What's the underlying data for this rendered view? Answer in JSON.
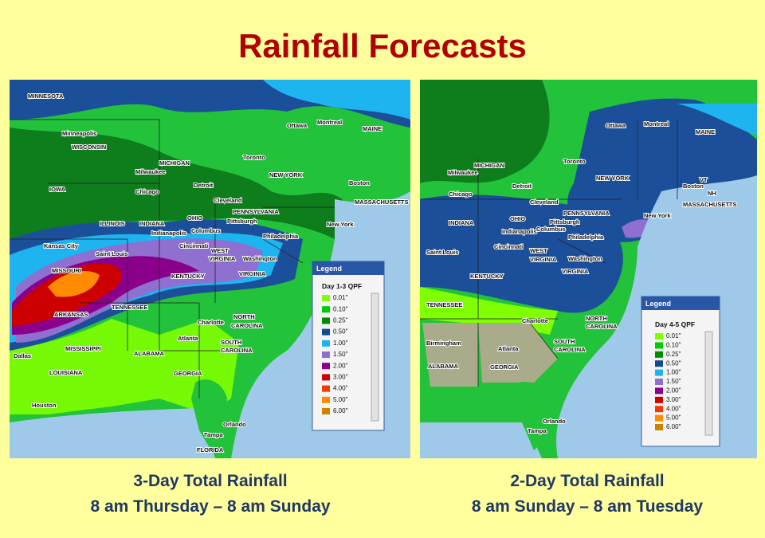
{
  "title": "Rainfall Forecasts",
  "panels": [
    {
      "caption": [
        "3-Day Total Rainfall",
        "8 am Thursday – 8 am Sunday"
      ],
      "legend": {
        "header": "Legend",
        "title": "Day 1-3 QPF",
        "items": [
          {
            "label": "0.01\"",
            "color": "#7fff00"
          },
          {
            "label": "0.10\"",
            "color": "#00cd00"
          },
          {
            "label": "0.25\"",
            "color": "#008b00"
          },
          {
            "label": "0.50\"",
            "color": "#104e8b"
          },
          {
            "label": "1.00\"",
            "color": "#1eb4f0"
          },
          {
            "label": "1.50\"",
            "color": "#8f6fd0"
          },
          {
            "label": "2.00\"",
            "color": "#8b008b"
          },
          {
            "label": "3.00\"",
            "color": "#cd0000"
          },
          {
            "label": "4.00\"",
            "color": "#f03c00"
          },
          {
            "label": "5.00\"",
            "color": "#ff8c00"
          },
          {
            "label": "6.00\"",
            "color": "#cd8500"
          }
        ]
      },
      "places": [
        "MINNESOTA",
        "Minneapolis",
        "WISCONSIN",
        "MICHIGAN",
        "Milwaukee",
        "Chicago",
        "Detroit",
        "Toronto",
        "Ottawa",
        "Montreal",
        "MAINE",
        "NEW YORK",
        "Boston",
        "MASSACHUSETTS",
        "IOWA",
        "ILLINOIS",
        "INDIANA",
        "OHIO",
        "Cleveland",
        "PENNSYLVANIA",
        "Pittsburgh",
        "Indianapolis",
        "Columbus",
        "Cincinnati",
        "New York",
        "Philadelphia",
        "Kansas City",
        "Saint Louis",
        "MISSOURI",
        "WEST",
        "VIRGINIA",
        "Washington",
        "KENTUCKY",
        "VIRGINIA",
        "TENNESSEE",
        "ARKANSAS",
        "Charlotte",
        "NORTH",
        "CAROLINA",
        "MISSISSIPPI",
        "ALABAMA",
        "Atlanta",
        "SOUTH",
        "CAROLINA",
        "GEORGIA",
        "LOUISIANA",
        "Dallas",
        "Houston",
        "Tampa",
        "Orlando",
        "FLORIDA"
      ]
    },
    {
      "caption": [
        "2-Day Total Rainfall",
        "8 am Sunday – 8 am Tuesday"
      ],
      "legend": {
        "header": "Legend",
        "title": "Day 4-5 QPF",
        "items": [
          {
            "label": "0.01\"",
            "color": "#7fff00"
          },
          {
            "label": "0.10\"",
            "color": "#00cd00"
          },
          {
            "label": "0.25\"",
            "color": "#008b00"
          },
          {
            "label": "0.50\"",
            "color": "#104e8b"
          },
          {
            "label": "1.00\"",
            "color": "#1eb4f0"
          },
          {
            "label": "1.50\"",
            "color": "#8f6fd0"
          },
          {
            "label": "2.00\"",
            "color": "#8b008b"
          },
          {
            "label": "3.00\"",
            "color": "#cd0000"
          },
          {
            "label": "4.00\"",
            "color": "#f03c00"
          },
          {
            "label": "5.00\"",
            "color": "#ff8c00"
          },
          {
            "label": "6.00\"",
            "color": "#cd8500"
          }
        ]
      },
      "places": [
        "Ottawa",
        "Montreal",
        "MAINE",
        "VT",
        "NH",
        "MICHIGAN",
        "Milwaukee",
        "Chicago",
        "Detroit",
        "Toronto",
        "NEW YORK",
        "Boston",
        "MASSACHUSETTS",
        "Cleveland",
        "PENNSYLVANIA",
        "Pittsburgh",
        "New York",
        "INDIANA",
        "OHIO",
        "Indianapolis",
        "Columbus",
        "Cincinnati",
        "Philadelphia",
        "Saint Louis",
        "WEST",
        "VIRGINIA",
        "Washington",
        "KENTUCKY",
        "VIRGINIA",
        "TENNESSEE",
        "Charlotte",
        "NORTH",
        "CAROLINA",
        "Birmingham",
        "ALABAMA",
        "Atlanta",
        "SOUTH",
        "CAROLINA",
        "GEORGIA",
        "Tampa",
        "Orlando"
      ]
    }
  ]
}
